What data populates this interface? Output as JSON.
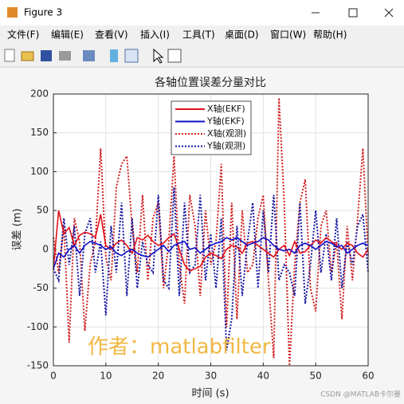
{
  "window": {
    "title": "Figure 3",
    "menu": [
      "文件(F)",
      "编辑(E)",
      "查看(V)",
      "插入(I)",
      "工具(T)",
      "桌面(D)",
      "窗口(W)",
      "帮助(H)"
    ]
  },
  "watermark": "作者：matlabfilter",
  "credit": "CSDN @MATLAB卡尔曼",
  "chart_data": {
    "type": "line",
    "title": "各轴位置误差分量对比",
    "xlabel": "时间 (s)",
    "ylabel": "误差 (m)",
    "x": [
      0,
      1,
      2,
      3,
      4,
      5,
      6,
      7,
      8,
      9,
      10,
      11,
      12,
      13,
      14,
      15,
      16,
      17,
      18,
      19,
      20,
      21,
      22,
      23,
      24,
      25,
      26,
      27,
      28,
      29,
      30,
      31,
      32,
      33,
      34,
      35,
      36,
      37,
      38,
      39,
      40,
      41,
      42,
      43,
      44,
      45,
      46,
      47,
      48,
      49,
      50,
      51,
      52,
      53,
      54,
      55,
      56,
      57,
      58,
      59,
      60
    ],
    "series": [
      {
        "name": "X轴(EKF)",
        "color": "#e0101a",
        "linestyle": "solid",
        "values": [
          -25,
          50,
          20,
          28,
          5,
          18,
          22,
          20,
          15,
          45,
          5,
          0,
          8,
          12,
          5,
          -5,
          15,
          12,
          18,
          10,
          5,
          8,
          15,
          20,
          0,
          -20,
          -28,
          -25,
          -22,
          -10,
          -5,
          -8,
          -12,
          0,
          5,
          3,
          -5,
          8,
          10,
          5,
          0,
          -5,
          -10,
          0,
          5,
          -8,
          10,
          -5,
          -3,
          5,
          12,
          8,
          15,
          10,
          5,
          0,
          8,
          5,
          -5,
          -10,
          0
        ]
      },
      {
        "name": "Y轴(EKF)",
        "color": "#1010c8",
        "linestyle": "solid",
        "values": [
          -25,
          -5,
          -10,
          0,
          5,
          -5,
          5,
          10,
          8,
          5,
          0,
          3,
          -5,
          -8,
          -3,
          0,
          -5,
          -8,
          -10,
          -5,
          0,
          5,
          -3,
          5,
          8,
          10,
          0,
          2,
          -5,
          0,
          5,
          8,
          10,
          15,
          12,
          15,
          10,
          5,
          8,
          10,
          15,
          12,
          5,
          0,
          -2,
          0,
          -5,
          5,
          8,
          5,
          0,
          5,
          10,
          8,
          3,
          5,
          -5,
          0,
          5,
          8,
          5
        ]
      },
      {
        "name": "X轴(观测)",
        "color": "#d02020",
        "linestyle": "dotted",
        "values": [
          15,
          -30,
          30,
          -120,
          40,
          10,
          -105,
          -20,
          10,
          130,
          -10,
          -40,
          80,
          110,
          120,
          30,
          -30,
          70,
          -40,
          40,
          60,
          -50,
          10,
          120,
          -20,
          -70,
          70,
          30,
          -60,
          50,
          -20,
          10,
          110,
          -100,
          60,
          -90,
          50,
          -30,
          -20,
          40,
          70,
          -40,
          -140,
          195,
          60,
          -150,
          -20,
          60,
          90,
          -50,
          -80,
          30,
          50,
          -30,
          10,
          -90,
          30,
          -40,
          40,
          130,
          -10
        ]
      },
      {
        "name": "Y轴(观测)",
        "color": "#1515a0",
        "linestyle": "dotted",
        "values": [
          -25,
          -40,
          40,
          -20,
          30,
          -60,
          20,
          40,
          -30,
          10,
          -85,
          30,
          -30,
          60,
          -60,
          40,
          -50,
          10,
          -20,
          -30,
          70,
          -40,
          -50,
          80,
          -60,
          60,
          -30,
          -20,
          70,
          -40,
          20,
          -50,
          40,
          -130,
          -90,
          30,
          -60,
          10,
          60,
          -50,
          50,
          -30,
          70,
          -40,
          -20,
          -30,
          -60,
          60,
          -70,
          -20,
          50,
          -30,
          20,
          -40,
          40,
          -50,
          10,
          -20,
          30,
          45,
          -30
        ]
      }
    ],
    "xlim": [
      0,
      60
    ],
    "xticks": [
      0,
      10,
      20,
      30,
      40,
      50,
      60
    ],
    "ylim": [
      -150,
      200
    ],
    "yticks": [
      -150,
      -100,
      -50,
      0,
      50,
      100,
      150,
      200
    ],
    "grid": true,
    "legend": "top"
  }
}
